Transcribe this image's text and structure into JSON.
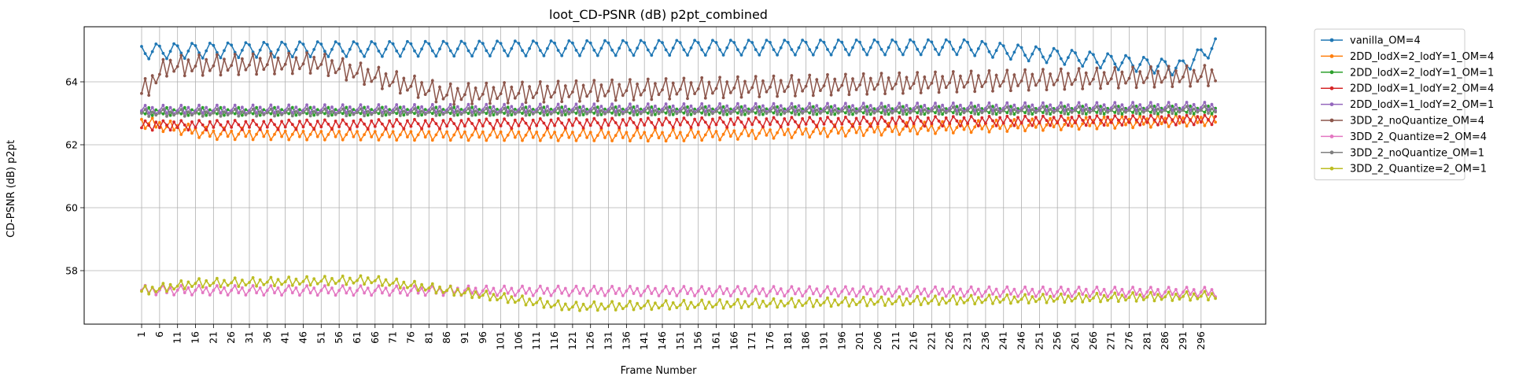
{
  "chart_data": {
    "type": "line",
    "title": "loot_CD-PSNR (dB) p2pt_combined",
    "xlabel": "Frame Number",
    "ylabel": "CD-PSNR (dB) p2pt",
    "xlim": [
      -15,
      314
    ],
    "ylim": [
      56.3,
      65.75
    ],
    "grid": true,
    "legend_position": "outside-top-right",
    "x_ticks": [
      1,
      6,
      11,
      16,
      21,
      26,
      31,
      36,
      41,
      46,
      51,
      56,
      61,
      66,
      71,
      76,
      81,
      86,
      91,
      96,
      101,
      106,
      111,
      116,
      121,
      126,
      131,
      136,
      141,
      146,
      151,
      156,
      161,
      166,
      171,
      176,
      181,
      186,
      191,
      196,
      201,
      206,
      211,
      216,
      221,
      226,
      231,
      236,
      241,
      246,
      251,
      256,
      261,
      266,
      271,
      276,
      281,
      286,
      291,
      296
    ],
    "y_ticks": [
      58,
      60,
      62,
      64
    ],
    "x": {
      "start": 1,
      "end": 300,
      "step": 1
    },
    "series": [
      {
        "name": "vanilla_OM=4",
        "color": "#1f77b4",
        "period": 5,
        "pattern": [
          64.95,
          64.72,
          64.55,
          64.78,
          65.02
        ],
        "keypoints": [
          [
            1,
            64.98
          ],
          [
            44,
            65.05
          ],
          [
            150,
            65.1
          ],
          [
            230,
            65.12
          ],
          [
            290,
            64.45
          ],
          [
            300,
            65.15
          ]
        ]
      },
      {
        "name": "2DD_lodX=2_lodY=1_OM=4",
        "color": "#ff7f0e",
        "period": 5,
        "pattern": [
          62.72,
          62.45,
          62.62,
          62.82,
          62.55
        ],
        "keypoints": [
          [
            1,
            62.72
          ],
          [
            20,
            62.35
          ],
          [
            150,
            62.3
          ],
          [
            300,
            62.8
          ]
        ]
      },
      {
        "name": "2DD_lodX=2_lodY=1_OM=1",
        "color": "#2ca02c",
        "period": 5,
        "pattern": [
          63.02,
          62.95,
          63.15,
          62.9,
          63.08
        ],
        "keypoints": [
          [
            1,
            63.05
          ],
          [
            300,
            63.1
          ]
        ]
      },
      {
        "name": "2DD_lodX=1_lodY=2_OM=4",
        "color": "#d62728",
        "period": 5,
        "pattern": [
          62.7,
          62.92,
          62.78,
          62.62,
          62.88
        ],
        "keypoints": [
          [
            1,
            62.62
          ],
          [
            300,
            62.8
          ]
        ]
      },
      {
        "name": "2DD_lodX=1_lodY=2_OM=1",
        "color": "#9467bd",
        "period": 5,
        "pattern": [
          63.08,
          63.25,
          63.0,
          63.18,
          62.98
        ],
        "keypoints": [
          [
            1,
            63.1
          ],
          [
            300,
            63.2
          ]
        ]
      },
      {
        "name": "3DD_2_noQuantize_OM=4",
        "color": "#8c564b",
        "period": 5,
        "pattern": [
          64.15,
          64.5,
          63.85,
          64.35,
          64.0
        ],
        "keypoints": [
          [
            1,
            63.65
          ],
          [
            8,
            64.5
          ],
          [
            50,
            64.6
          ],
          [
            86,
            63.6
          ],
          [
            300,
            64.2
          ]
        ]
      },
      {
        "name": "3DD_2_Quantize=2_OM=4",
        "color": "#e377c2",
        "period": 5,
        "pattern": [
          57.2,
          57.35,
          57.12,
          57.28,
          57.05
        ],
        "keypoints": [
          [
            1,
            57.38
          ],
          [
            300,
            57.32
          ]
        ]
      },
      {
        "name": "3DD_2_noQuantize_OM=1",
        "color": "#7f7f7f",
        "period": 5,
        "pattern": [
          62.98,
          63.1,
          62.88,
          63.02,
          62.92
        ],
        "keypoints": [
          [
            1,
            63.0
          ],
          [
            300,
            63.1
          ]
        ]
      },
      {
        "name": "3DD_2_Quantize=2_OM=1",
        "color": "#bcbd22",
        "period": 5,
        "pattern": [
          57.3,
          57.45,
          57.18,
          57.38,
          57.22
        ],
        "keypoints": [
          [
            1,
            57.35
          ],
          [
            16,
            57.6
          ],
          [
            65,
            57.7
          ],
          [
            120,
            56.85
          ],
          [
            300,
            57.2
          ]
        ]
      }
    ]
  }
}
